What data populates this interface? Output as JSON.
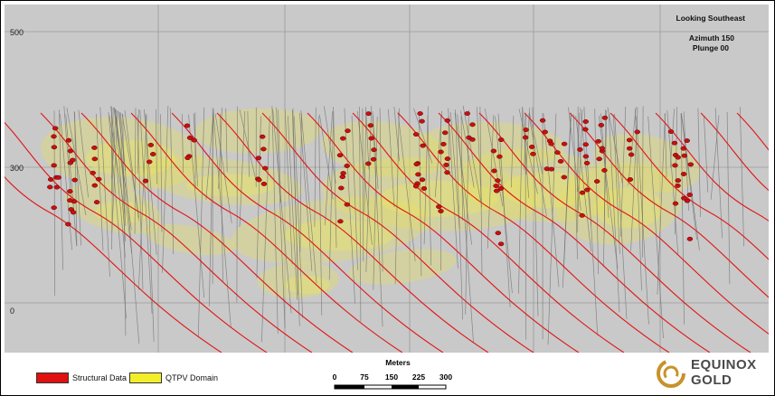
{
  "view": {
    "direction": "Looking Southeast",
    "azimuth": "Azimuth 150",
    "plunge": "Plunge 00"
  },
  "elevation_labels": [
    "500",
    "300",
    "0"
  ],
  "legend": {
    "structural": {
      "label": "Structural Data",
      "color": "#e01010"
    },
    "domain": {
      "label": "QTPV Domain",
      "color": "#f2ee2a"
    }
  },
  "scale": {
    "title": "Meters",
    "ticks": [
      "0",
      "75",
      "150",
      "225",
      "300"
    ]
  },
  "logo": {
    "line1": "EQUINOX",
    "line2": "GOLD",
    "icon": "swirl-logo-icon"
  },
  "colors": {
    "background": "#c9c9c9",
    "grid": "#9a9a9a",
    "fault_lines": "#e01818",
    "drillholes": "#6e6e6e",
    "logo_gold": "#c8922a"
  }
}
